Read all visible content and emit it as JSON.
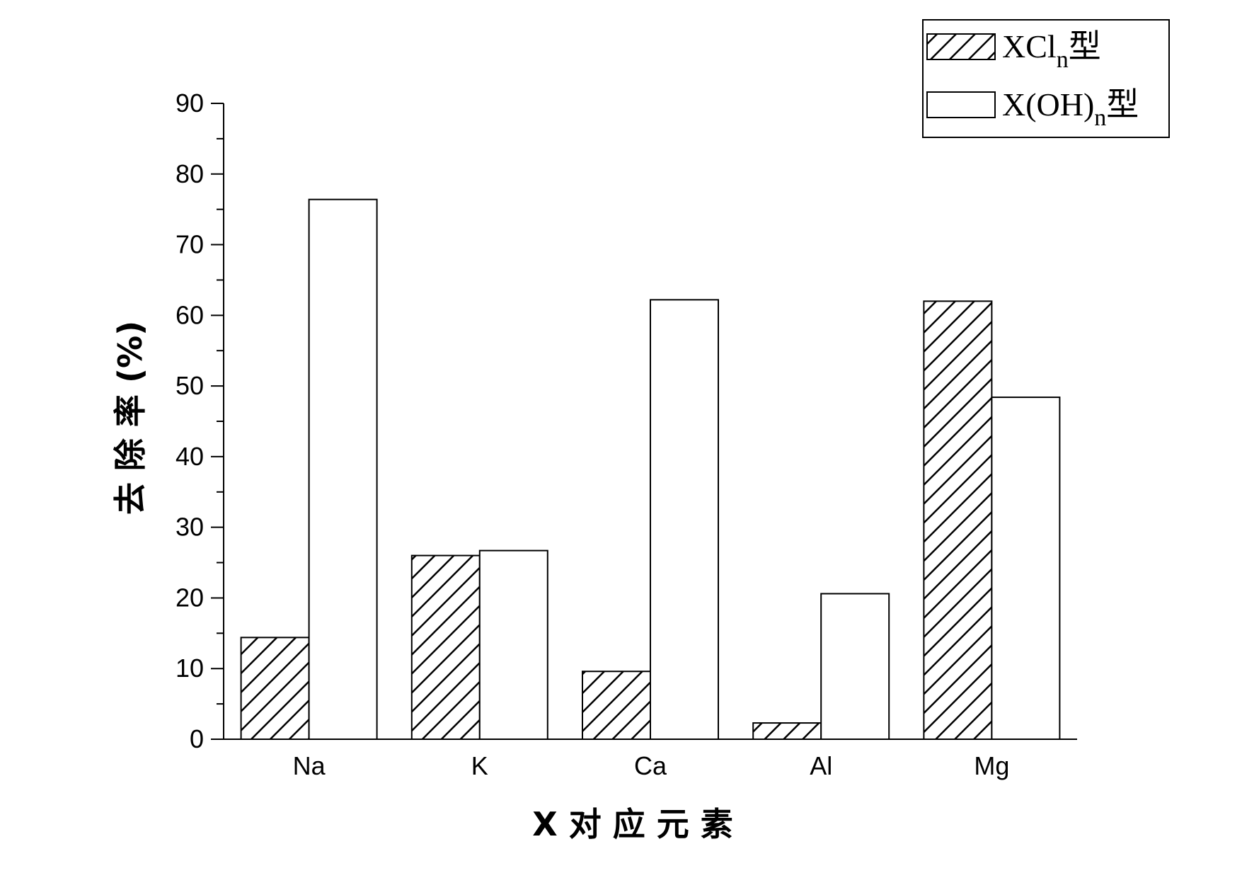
{
  "chart_data": {
    "type": "bar",
    "categories": [
      "Na",
      "K",
      "Ca",
      "Al",
      "Mg"
    ],
    "series": [
      {
        "name": "XCl",
        "name_sub": "n",
        "name_suffix": "型",
        "pattern": "hatched",
        "values": [
          14.4,
          26.0,
          9.6,
          2.3,
          62.0
        ]
      },
      {
        "name": "X(OH)",
        "name_sub": "n",
        "name_suffix": "型",
        "pattern": "open",
        "values": [
          76.4,
          26.7,
          62.2,
          20.6,
          48.4
        ]
      }
    ],
    "xlabel": "X 对 应 元 素",
    "ylabel": "去 除 率 (%)",
    "ylim": [
      0,
      90
    ],
    "yticks": [
      0,
      10,
      20,
      30,
      40,
      50,
      60,
      70,
      80,
      90
    ],
    "grid": false,
    "legend_position": "top-right"
  }
}
